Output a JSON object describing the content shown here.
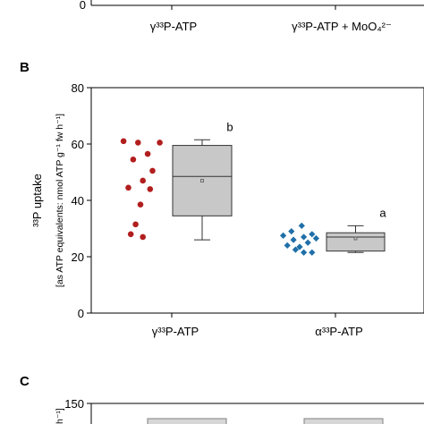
{
  "panel_a": {
    "ytick_label": "0",
    "categories": [
      "γ³³P-ATP",
      "γ³³P-ATP + MoO₄²⁻"
    ]
  },
  "panel_b": {
    "label": "B",
    "chart_data": {
      "type": "box",
      "ylabel": "³³P uptake",
      "ylabel_sub": "[as ATP equivalents: nmol ATP g⁻¹ fw h⁻¹]",
      "ylim": [
        0,
        80
      ],
      "yticks": [
        0,
        20,
        40,
        60,
        80
      ],
      "categories": [
        "γ³³P-ATP",
        "α³³P-ATP"
      ],
      "series": [
        {
          "category": "γ³³P-ATP",
          "color": "#b21e1e",
          "marker": "circle",
          "points": [
            60.5,
            60.5,
            61,
            56.5,
            54.5,
            50.5,
            47,
            44.5,
            44,
            38.5,
            31.5,
            28,
            27
          ],
          "box": {
            "whisker_low": 26,
            "q1": 34.5,
            "median": 48.5,
            "mean": 47,
            "q3": 59.5,
            "whisker_high": 61.5
          },
          "significance": "b"
        },
        {
          "category": "α³³P-ATP",
          "color": "#1f6fa8",
          "marker": "diamond",
          "points": [
            31,
            29,
            28,
            27.5,
            27,
            26.5,
            26,
            25,
            24,
            23.5,
            22.5,
            21.5,
            21.5
          ],
          "box": {
            "whisker_low": 21.5,
            "q1": 22,
            "median": 27,
            "mean": 26.5,
            "q3": 28.5,
            "whisker_high": 31
          },
          "significance": "a"
        }
      ]
    }
  },
  "panel_c": {
    "label": "C",
    "ytick_label": "150",
    "ylabel_fragment": "h⁻¹]"
  }
}
